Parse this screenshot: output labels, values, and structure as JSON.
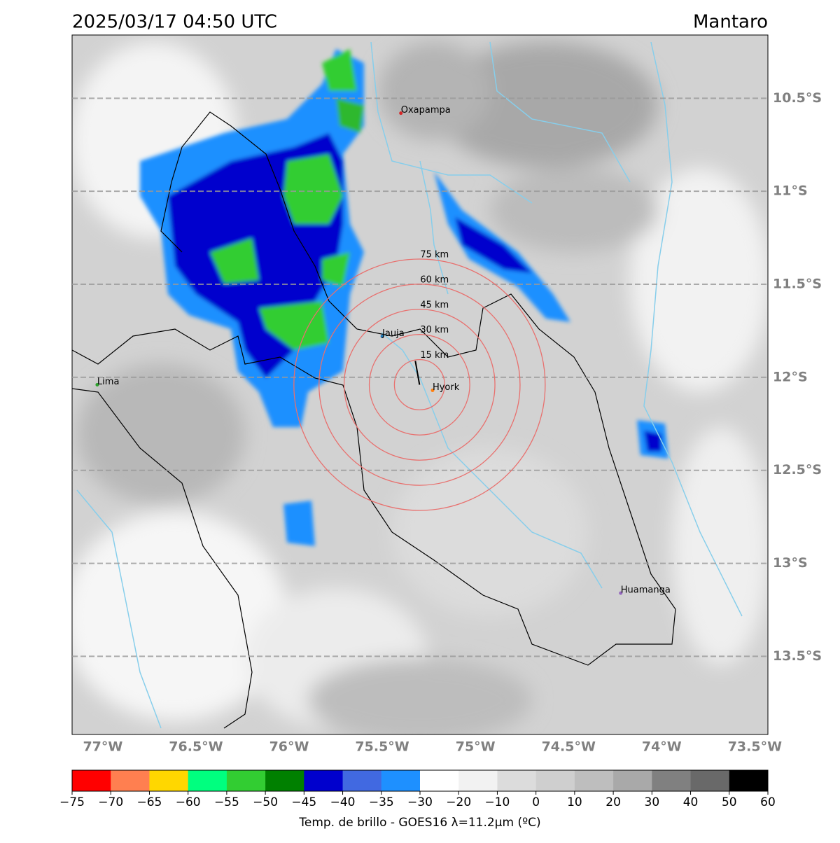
{
  "title": "2025/03/17 04:50 UTC",
  "region": "Mantaro",
  "map": {
    "lonlim": [
      -77.165,
      -73.43
    ],
    "latlim": [
      -13.92,
      -10.16
    ],
    "lat_ticks": [
      {
        "value": -10.5,
        "label": "10.5°S"
      },
      {
        "value": -11,
        "label": "11°S"
      },
      {
        "value": -11.5,
        "label": "11.5°S"
      },
      {
        "value": -12,
        "label": "12°S"
      },
      {
        "value": -12.5,
        "label": "12.5°S"
      },
      {
        "value": -13,
        "label": "13°S"
      },
      {
        "value": -13.5,
        "label": "13.5°S"
      }
    ],
    "lon_ticks": [
      {
        "value": -77,
        "label": "77°W"
      },
      {
        "value": -76.5,
        "label": "76.5°W"
      },
      {
        "value": -76,
        "label": "76°W"
      },
      {
        "value": -75.5,
        "label": "75.5°W"
      },
      {
        "value": -75,
        "label": "75°W"
      },
      {
        "value": -74.5,
        "label": "74.5°W"
      },
      {
        "value": -74,
        "label": "74°W"
      },
      {
        "value": -73.5,
        "label": "73.5°W"
      }
    ]
  },
  "rings": {
    "center": [
      -75.3,
      -12.04
    ],
    "color": "#e8706e",
    "items": [
      {
        "radius_km": 15,
        "label": "15 km"
      },
      {
        "radius_km": 30,
        "label": "30 km"
      },
      {
        "radius_km": 45,
        "label": "45 km"
      },
      {
        "radius_km": 60,
        "label": "60 km"
      },
      {
        "radius_km": 75,
        "label": "75 km"
      }
    ]
  },
  "cities": [
    {
      "name": "Oxapampa",
      "lon": -75.4,
      "lat": -10.58,
      "color": "#d62728"
    },
    {
      "name": "Jauja",
      "lon": -75.5,
      "lat": -11.78,
      "color": "#1f77b4"
    },
    {
      "name": "Hyork",
      "lon": -75.23,
      "lat": -12.07,
      "color": "#ff7f0e"
    },
    {
      "name": "Lima",
      "lon": -77.03,
      "lat": -12.04,
      "color": "#2ca02c"
    },
    {
      "name": "Huamanga",
      "lon": -74.22,
      "lat": -13.16,
      "color": "#9467bd"
    }
  ],
  "colorbar": {
    "label": "Temp. de brillo - GOES16 λ=11.2μm (ºC)",
    "ticks": [
      {
        "value": -75,
        "label": "−75"
      },
      {
        "value": -70,
        "label": "−70"
      },
      {
        "value": -65,
        "label": "−65"
      },
      {
        "value": -60,
        "label": "−60"
      },
      {
        "value": -55,
        "label": "−55"
      },
      {
        "value": -50,
        "label": "−50"
      },
      {
        "value": -45,
        "label": "−45"
      },
      {
        "value": -40,
        "label": "−40"
      },
      {
        "value": -35,
        "label": "−35"
      },
      {
        "value": -30,
        "label": "−30"
      },
      {
        "value": -20,
        "label": "−20"
      },
      {
        "value": -10,
        "label": "−10"
      },
      0,
      10,
      20,
      30,
      40,
      50,
      60
    ],
    "colors": [
      "#ff0000",
      "#ff7f50",
      "#ffd700",
      "#00ff7f",
      "#32cd32",
      "#008000",
      "#0000cd",
      "#4169e1",
      "#1e90ff",
      "#ffffff",
      "#f2f2f2",
      "#dcdcdc",
      "#cfcfcf",
      "#bebebe",
      "#a9a9a9",
      "#808080",
      "#696969",
      "#000000"
    ]
  }
}
